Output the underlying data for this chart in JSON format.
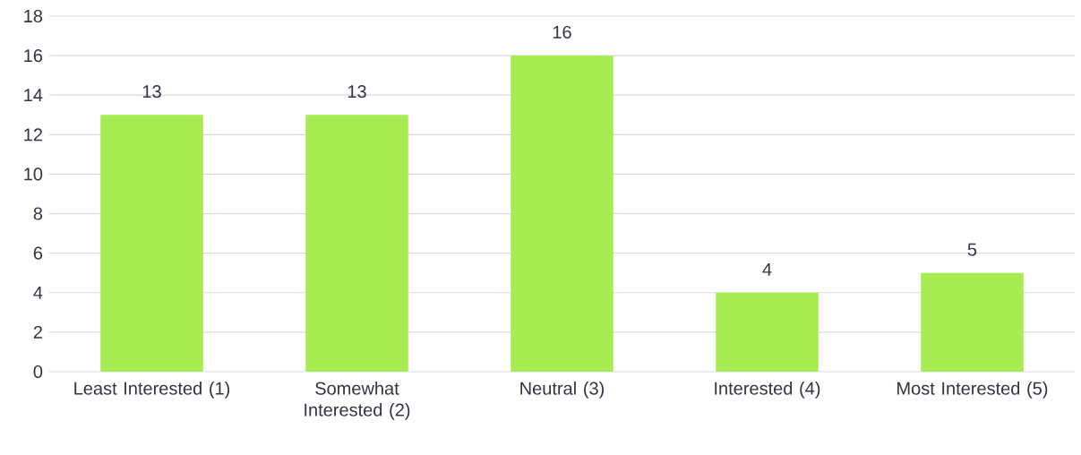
{
  "chart_data": {
    "type": "bar",
    "categories": [
      "Least Interested (1)",
      "Somewhat Interested (2)",
      "Neutral (3)",
      "Interested (4)",
      "Most Interested (5)"
    ],
    "values": [
      13,
      13,
      16,
      4,
      5
    ],
    "color": "#a6ec52",
    "ylim": [
      0,
      18
    ],
    "yticks": [
      0,
      2,
      4,
      6,
      8,
      10,
      12,
      14,
      16,
      18
    ],
    "grid": "y",
    "data_labels": true
  }
}
